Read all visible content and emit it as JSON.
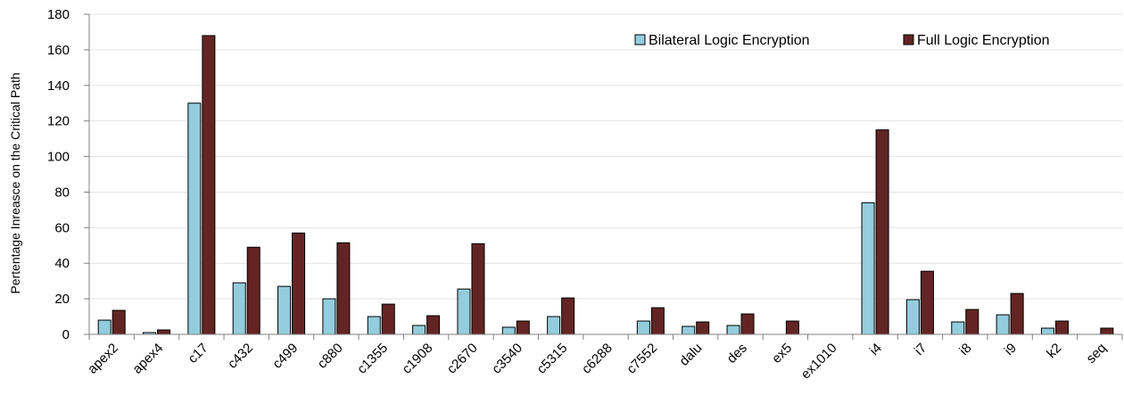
{
  "chart_data": {
    "type": "bar",
    "title": "",
    "xlabel": "",
    "ylabel": "Pertentage Inreasce on the Critical Path",
    "ylim": [
      0,
      180
    ],
    "yticks": [
      0,
      20,
      40,
      60,
      80,
      100,
      120,
      140,
      160,
      180
    ],
    "grid": true,
    "legend_position": "top-right",
    "categories": [
      "apex2",
      "apex4",
      "c17",
      "c432",
      "c499",
      "c880",
      "c1355",
      "c1908",
      "c2670",
      "c3540",
      "c5315",
      "c6288",
      "c7552",
      "dalu",
      "des",
      "ex5",
      "ex1010",
      "i4",
      "i7",
      "i8",
      "i9",
      "k2",
      "seq"
    ],
    "series": [
      {
        "name": "Bilateral Logic Encryption",
        "color": "#93cddd",
        "values": [
          8,
          1,
          130,
          29,
          27,
          20,
          10,
          5,
          25.5,
          4,
          10,
          0,
          7.5,
          4.5,
          5,
          0,
          0,
          74,
          19.5,
          7,
          11,
          3.5,
          0
        ]
      },
      {
        "name": "Full Logic Encryption",
        "color": "#632523",
        "values": [
          13.5,
          2.5,
          168,
          49,
          57,
          51.5,
          17,
          10.5,
          51,
          7.5,
          20.5,
          0,
          15,
          7,
          11.5,
          7.5,
          0,
          115,
          35.5,
          14,
          23,
          7.5,
          3.5
        ]
      }
    ]
  }
}
